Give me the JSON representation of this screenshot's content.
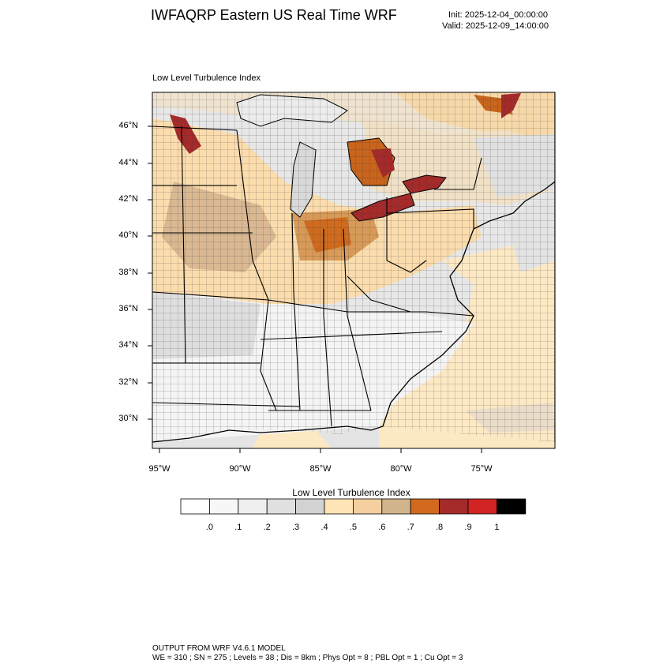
{
  "header": {
    "title": "IWFAQRP Eastern US Real Time WRF",
    "init": "Init: 2025-12-04_00:00:00",
    "valid": "Valid: 2025-12-09_14:00:00"
  },
  "map": {
    "subtitle": "Low Level Turbulence Index",
    "lat_labels": [
      "46°N",
      "44°N",
      "42°N",
      "40°N",
      "38°N",
      "36°N",
      "34°N",
      "32°N",
      "30°N"
    ],
    "lon_labels": [
      "95°W",
      "90°W",
      "85°W",
      "80°W",
      "75°W"
    ],
    "lat_values": [
      46,
      44,
      42,
      40,
      38,
      36,
      34,
      32,
      30
    ],
    "lon_values": [
      -95,
      -90,
      -85,
      -80,
      -75
    ]
  },
  "legend": {
    "title": "Low Level Turbulence Index",
    "tick_labels": [
      ".0",
      ".1",
      ".2",
      ".3",
      ".4",
      ".5",
      ".6",
      ".7",
      ".8",
      ".9",
      "1"
    ],
    "colors": [
      "#ffffff",
      "#f7f7f7",
      "#efefef",
      "#e0e0e0",
      "#d2d2d2",
      "#ffe4b5",
      "#f5cfa0",
      "#d2b48c",
      "#d2691e",
      "#a52a2a",
      "#d22424",
      "#000000"
    ]
  },
  "footer": {
    "line1": "OUTPUT FROM WRF V4.6.1 MODEL",
    "line2": "WE = 310 ; SN = 275 ; Levels = 38 ; Dis = 8km ; Phys Opt = 8 ; PBL Opt = 1 ; Cu Opt = 3"
  }
}
